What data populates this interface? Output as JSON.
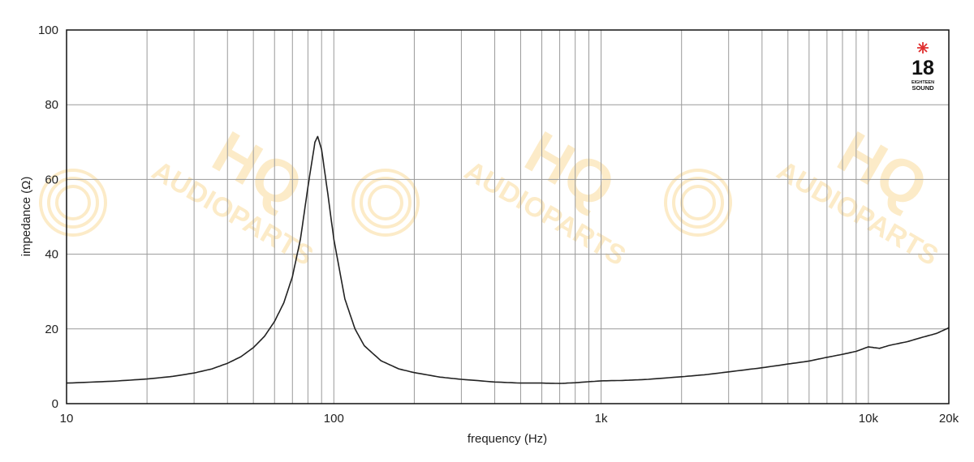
{
  "chart_data": {
    "type": "line",
    "xscale": "log",
    "xlim": [
      10,
      20000
    ],
    "ylim": [
      0,
      100
    ],
    "grid": true,
    "xlabel": "frequency (Hz)",
    "ylabel": "impedance (Ω)",
    "x_ticks": [
      {
        "value": 10,
        "label": "10"
      },
      {
        "value": 100,
        "label": "100"
      },
      {
        "value": 1000,
        "label": "1k"
      },
      {
        "value": 10000,
        "label": "10k"
      },
      {
        "value": 20000,
        "label": "20k"
      }
    ],
    "y_ticks": [
      {
        "value": 0,
        "label": "0"
      },
      {
        "value": 20,
        "label": "20"
      },
      {
        "value": 40,
        "label": "40"
      },
      {
        "value": 60,
        "label": "60"
      },
      {
        "value": 80,
        "label": "80"
      },
      {
        "value": 100,
        "label": "100"
      }
    ],
    "series": [
      {
        "color": "#222222",
        "points": [
          [
            10,
            5.5
          ],
          [
            15,
            6.0
          ],
          [
            20,
            6.6
          ],
          [
            25,
            7.3
          ],
          [
            30,
            8.2
          ],
          [
            35,
            9.3
          ],
          [
            40,
            10.8
          ],
          [
            45,
            12.6
          ],
          [
            50,
            15.0
          ],
          [
            55,
            18.0
          ],
          [
            60,
            22.0
          ],
          [
            65,
            27.0
          ],
          [
            70,
            34.0
          ],
          [
            75,
            44.0
          ],
          [
            80,
            58.0
          ],
          [
            85,
            70.0
          ],
          [
            87,
            71.5
          ],
          [
            90,
            68.0
          ],
          [
            95,
            56.0
          ],
          [
            100,
            44.0
          ],
          [
            110,
            28.0
          ],
          [
            120,
            20.0
          ],
          [
            130,
            15.5
          ],
          [
            150,
            11.5
          ],
          [
            175,
            9.3
          ],
          [
            200,
            8.3
          ],
          [
            250,
            7.1
          ],
          [
            300,
            6.5
          ],
          [
            400,
            5.8
          ],
          [
            500,
            5.5
          ],
          [
            600,
            5.5
          ],
          [
            700,
            5.4
          ],
          [
            800,
            5.6
          ],
          [
            1000,
            6.1
          ],
          [
            1200,
            6.2
          ],
          [
            1500,
            6.5
          ],
          [
            2000,
            7.2
          ],
          [
            2500,
            7.8
          ],
          [
            3000,
            8.5
          ],
          [
            4000,
            9.6
          ],
          [
            5000,
            10.6
          ],
          [
            6000,
            11.4
          ],
          [
            7000,
            12.4
          ],
          [
            8000,
            13.2
          ],
          [
            9000,
            14.0
          ],
          [
            10000,
            15.2
          ],
          [
            11000,
            14.8
          ],
          [
            12000,
            15.6
          ],
          [
            14000,
            16.6
          ],
          [
            16000,
            17.8
          ],
          [
            18000,
            18.8
          ],
          [
            20000,
            20.3
          ]
        ]
      }
    ]
  },
  "logo": {
    "number": "18",
    "line1": "EIGHTEEN",
    "line2": "SOUND",
    "star_color": "#e03030"
  },
  "watermark": {
    "line1": "HQ",
    "line2": "AUDIOPARTS",
    "color": "#f7c45a"
  }
}
